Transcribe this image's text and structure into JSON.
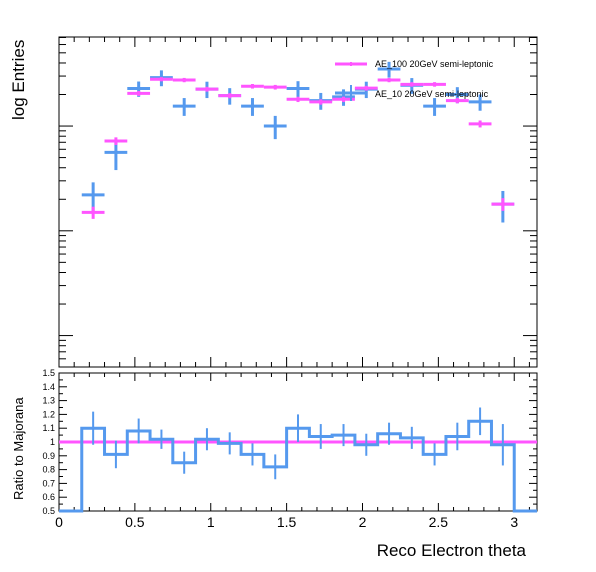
{
  "chart_data": [
    {
      "type": "scatter",
      "ylabel": "log Entries",
      "log_y": true,
      "xlim": [
        0,
        3.15
      ],
      "y_tick_labels_shown": false,
      "legend_position": "top-right",
      "bin_width": 0.15,
      "colors": {
        "ae100": "#ff55ff",
        "ae10": "#5599ee"
      },
      "series": [
        {
          "name": "AE_100 20GeV semi-leptonic",
          "style": "errorbar-pink",
          "x": [
            0.225,
            0.375,
            0.525,
            0.675,
            0.825,
            0.975,
            1.125,
            1.275,
            1.425,
            1.575,
            1.725,
            1.875,
            2.025,
            2.175,
            2.325,
            2.475,
            2.625,
            2.775,
            2.925
          ],
          "values": [
            150,
            720,
            2050,
            2800,
            2750,
            2250,
            1950,
            2400,
            2350,
            1800,
            1700,
            1800,
            2300,
            2750,
            2500,
            2500,
            1750,
            1050,
            180
          ],
          "errors": [
            20,
            60,
            110,
            130,
            130,
            120,
            110,
            120,
            120,
            105,
            100,
            105,
            120,
            130,
            125,
            125,
            100,
            80,
            25
          ]
        },
        {
          "name": "AE_10 20GeV semi-leptonic",
          "style": "errorbar-blue",
          "x": [
            0.225,
            0.375,
            0.525,
            0.675,
            0.825,
            0.975,
            1.125,
            1.275,
            1.425,
            1.575,
            1.725,
            1.875,
            2.025,
            2.175,
            2.325,
            2.475,
            2.625,
            2.775,
            2.925
          ],
          "values": [
            220,
            560,
            2280,
            2900,
            1550,
            2250,
            1950,
            1550,
            1000,
            2280,
            1750,
            1900,
            2250,
            3500,
            2450,
            1550,
            2000,
            1700,
            180
          ],
          "errors": [
            70,
            180,
            380,
            500,
            300,
            400,
            350,
            300,
            250,
            400,
            320,
            340,
            400,
            600,
            420,
            300,
            350,
            300,
            60
          ]
        }
      ]
    },
    {
      "type": "line",
      "xlabel": "Reco Electron theta",
      "ylabel": "Ratio to Majorana",
      "xlim": [
        0,
        3.15
      ],
      "ylim": [
        0.5,
        1.5
      ],
      "x_ticks": [
        0,
        0.5,
        1,
        1.5,
        2,
        2.5,
        3
      ],
      "x_tick_labels": [
        "0",
        "0.5",
        "1",
        "1.5",
        "2",
        "2.5",
        "3"
      ],
      "y_ticks": [
        0.5,
        0.6,
        0.7,
        0.8,
        0.9,
        1.0,
        1.1,
        1.2,
        1.3,
        1.4,
        1.5
      ],
      "y_tick_labels": [
        "0.5",
        "0.6",
        "0.7",
        "0.8",
        "0.9",
        "1",
        "1.1",
        "1.2",
        "1.3",
        "1.4",
        "1.5"
      ],
      "bin_edges": [
        0,
        0.15,
        0.3,
        0.45,
        0.6,
        0.75,
        0.9,
        1.05,
        1.2,
        1.35,
        1.5,
        1.65,
        1.8,
        1.95,
        2.1,
        2.25,
        2.4,
        2.55,
        2.7,
        2.85,
        3.0,
        3.15
      ],
      "series": [
        {
          "style": "ratio-pink",
          "values": [
            1,
            1,
            1,
            1,
            1,
            1,
            1,
            1,
            1,
            1,
            1,
            1,
            1,
            1,
            1,
            1,
            1,
            1,
            1,
            1,
            1
          ],
          "errors": [
            0,
            0,
            0,
            0,
            0,
            0,
            0,
            0,
            0,
            0,
            0,
            0,
            0,
            0,
            0,
            0,
            0,
            0,
            0,
            0,
            0
          ]
        },
        {
          "style": "ratio-blue",
          "values": [
            0.5,
            1.1,
            0.91,
            1.08,
            1.02,
            0.85,
            1.02,
            0.99,
            0.91,
            0.82,
            1.1,
            1.04,
            1.05,
            0.98,
            1.06,
            1.03,
            0.91,
            1.04,
            1.15,
            0.98,
            0.5
          ],
          "errors": [
            0,
            0.12,
            0.1,
            0.09,
            0.07,
            0.08,
            0.08,
            0.08,
            0.08,
            0.09,
            0.1,
            0.09,
            0.08,
            0.08,
            0.08,
            0.08,
            0.08,
            0.1,
            0.1,
            0.15,
            0
          ]
        }
      ]
    }
  ]
}
